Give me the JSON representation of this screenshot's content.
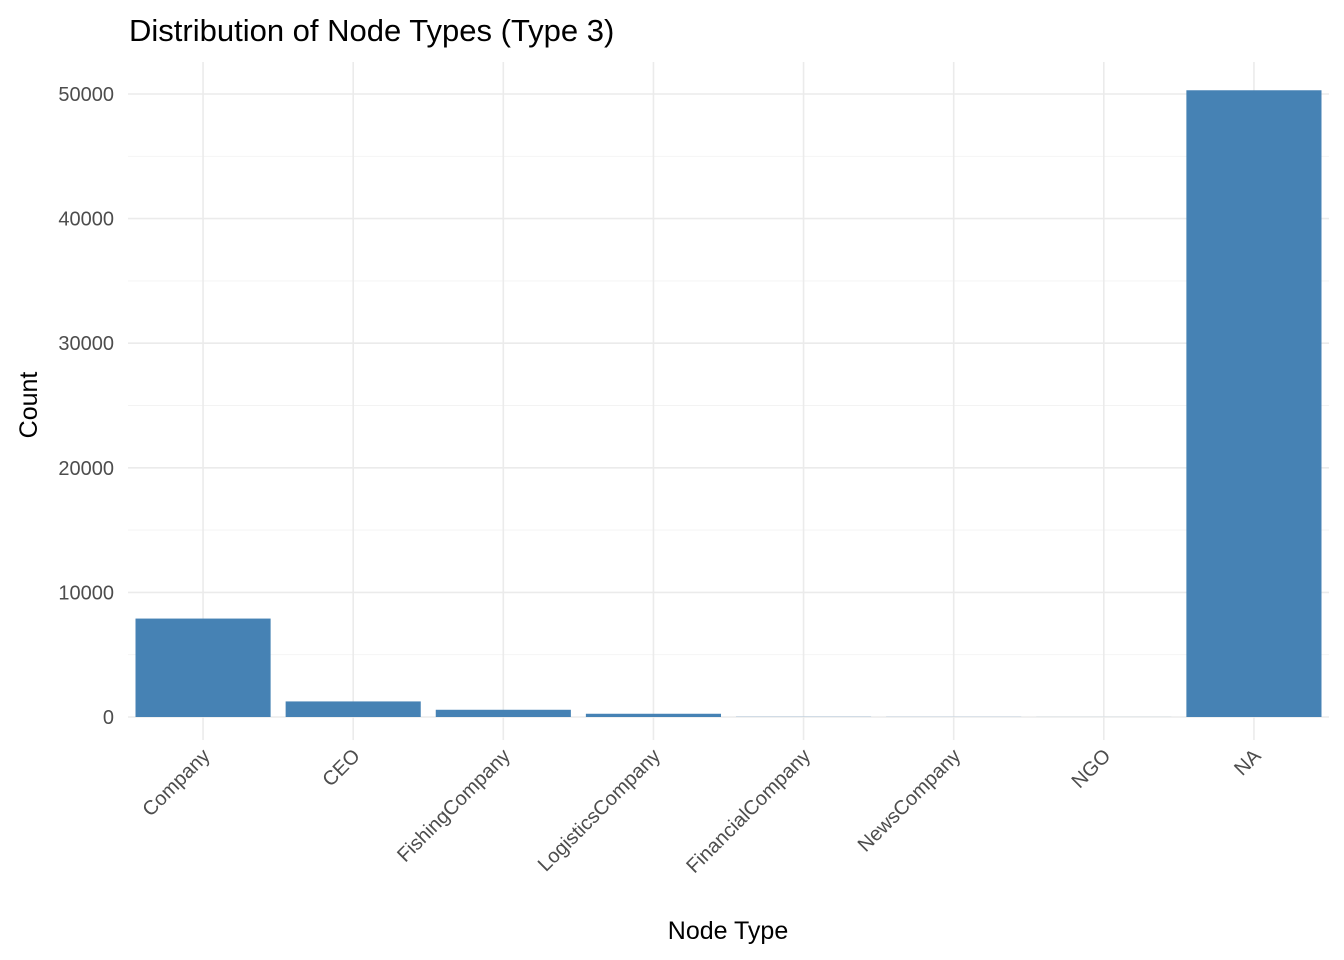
{
  "chart_data": {
    "type": "bar",
    "title": "Distribution of Node Types (Type 3)",
    "xlabel": "Node Type",
    "ylabel": "Count",
    "categories": [
      "Company",
      "CEO",
      "FishingCompany",
      "LogisticsCompany",
      "FinancialCompany",
      "NewsCompany",
      "NGO",
      "NA"
    ],
    "values": [
      7900,
      1250,
      580,
      260,
      15,
      10,
      5,
      50300
    ],
    "ylim": [
      -1500,
      53000
    ],
    "yticks": [
      0,
      10000,
      20000,
      30000,
      40000,
      50000
    ],
    "ytick_labels": [
      "0",
      "10000",
      "20000",
      "30000",
      "40000",
      "50000"
    ],
    "bar_color": "#4682B4",
    "grid": true,
    "legend": "none"
  }
}
